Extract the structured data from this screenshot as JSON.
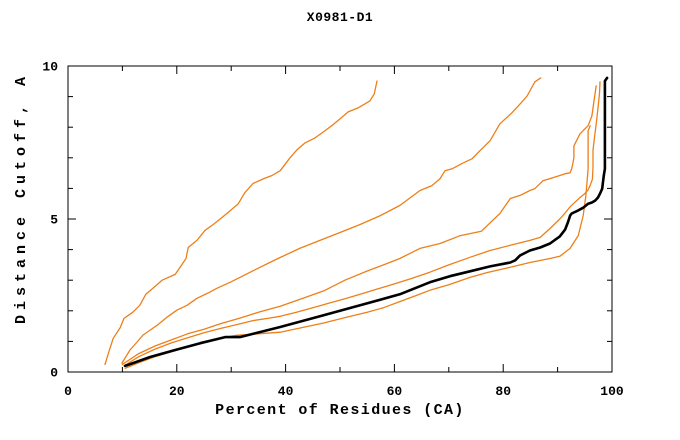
{
  "figure": {
    "title": "X0981-D1",
    "xlabel": "Percent of Residues (CA)",
    "ylabel": "Distance Cutoff, A"
  },
  "chart_data": {
    "type": "line",
    "title": "X0981-D1",
    "xlabel": "Percent of Residues (CA)",
    "ylabel": "Distance Cutoff, A",
    "xlim": [
      0,
      100
    ],
    "ylim": [
      0,
      10
    ],
    "xticks": {
      "major": [
        0,
        20,
        40,
        60,
        80,
        100
      ],
      "minor": [
        10,
        30,
        50,
        70,
        90
      ]
    },
    "yticks": {
      "major": [
        0,
        5,
        10
      ],
      "minor": [
        1,
        2,
        3,
        4,
        6,
        7,
        8,
        9
      ]
    },
    "grid": false,
    "legend": false,
    "frame": "box-with-inward-ticks",
    "colors": {
      "model_orange": "#ee7f18",
      "reference_black": "#000000"
    },
    "series": [
      {
        "name": "orange-line-1",
        "color": "#ee7f18",
        "width": 1.3,
        "points": [
          [
            6.8,
            0.25
          ],
          [
            7.4,
            0.6
          ],
          [
            8.3,
            1.1
          ],
          [
            9.6,
            1.45
          ],
          [
            10.3,
            1.75
          ],
          [
            11.9,
            1.95
          ],
          [
            13.2,
            2.18
          ],
          [
            14.3,
            2.54
          ],
          [
            15.6,
            2.74
          ],
          [
            17.3,
            3.0
          ],
          [
            19.7,
            3.19
          ],
          [
            20.6,
            3.42
          ],
          [
            21.7,
            3.71
          ],
          [
            22.1,
            4.07
          ],
          [
            23.7,
            4.3
          ],
          [
            25.2,
            4.63
          ],
          [
            26.7,
            4.82
          ],
          [
            28.3,
            5.05
          ],
          [
            29.4,
            5.21
          ],
          [
            31.3,
            5.5
          ],
          [
            32.5,
            5.86
          ],
          [
            34,
            6.16
          ],
          [
            36,
            6.32
          ],
          [
            37.5,
            6.42
          ],
          [
            39,
            6.58
          ],
          [
            40.8,
            7.0
          ],
          [
            42.1,
            7.26
          ],
          [
            43.6,
            7.49
          ],
          [
            45.4,
            7.65
          ],
          [
            47.2,
            7.88
          ],
          [
            48.7,
            8.08
          ],
          [
            50,
            8.27
          ],
          [
            51.5,
            8.5
          ],
          [
            53.3,
            8.63
          ],
          [
            55.5,
            8.86
          ],
          [
            56.3,
            9.09
          ],
          [
            56.8,
            9.51
          ]
        ]
      },
      {
        "name": "orange-line-2",
        "color": "#ee7f18",
        "width": 1.3,
        "points": [
          [
            9.9,
            0.29
          ],
          [
            11.4,
            0.72
          ],
          [
            12.7,
            0.98
          ],
          [
            13.8,
            1.21
          ],
          [
            15.1,
            1.37
          ],
          [
            16.4,
            1.53
          ],
          [
            18.2,
            1.79
          ],
          [
            20,
            2.02
          ],
          [
            21.9,
            2.18
          ],
          [
            23.7,
            2.41
          ],
          [
            25.6,
            2.57
          ],
          [
            27.4,
            2.74
          ],
          [
            29.8,
            2.93
          ],
          [
            31.6,
            3.09
          ],
          [
            33.5,
            3.26
          ],
          [
            35.3,
            3.42
          ],
          [
            37.1,
            3.58
          ],
          [
            38.6,
            3.71
          ],
          [
            42.6,
            4.04
          ],
          [
            46.3,
            4.3
          ],
          [
            50,
            4.56
          ],
          [
            53.7,
            4.82
          ],
          [
            57.4,
            5.11
          ],
          [
            61,
            5.44
          ],
          [
            64.7,
            5.93
          ],
          [
            66.9,
            6.09
          ],
          [
            68.4,
            6.32
          ],
          [
            69.3,
            6.58
          ],
          [
            70.6,
            6.64
          ],
          [
            72.4,
            6.81
          ],
          [
            74.3,
            6.97
          ],
          [
            75.7,
            7.23
          ],
          [
            77.6,
            7.56
          ],
          [
            79.4,
            8.11
          ],
          [
            81.6,
            8.47
          ],
          [
            83.1,
            8.76
          ],
          [
            84.4,
            9.02
          ],
          [
            85.8,
            9.48
          ],
          [
            86.9,
            9.61
          ]
        ]
      },
      {
        "name": "orange-line-3",
        "color": "#ee7f18",
        "width": 1.3,
        "points": [
          [
            10,
            0.25
          ],
          [
            13,
            0.6
          ],
          [
            16,
            0.85
          ],
          [
            19,
            1.05
          ],
          [
            22,
            1.25
          ],
          [
            25,
            1.4
          ],
          [
            28,
            1.58
          ],
          [
            31.6,
            1.76
          ],
          [
            35,
            1.95
          ],
          [
            39,
            2.15
          ],
          [
            43,
            2.4
          ],
          [
            47,
            2.65
          ],
          [
            50.9,
            3.0
          ],
          [
            55,
            3.3
          ],
          [
            58,
            3.5
          ],
          [
            61,
            3.71
          ],
          [
            64.7,
            4.04
          ],
          [
            68.4,
            4.2
          ],
          [
            72,
            4.45
          ],
          [
            76,
            4.6
          ],
          [
            79.4,
            5.18
          ],
          [
            81.3,
            5.67
          ],
          [
            83.1,
            5.77
          ],
          [
            84.9,
            5.93
          ],
          [
            85.8,
            5.99
          ],
          [
            87.3,
            6.25
          ],
          [
            88.6,
            6.32
          ],
          [
            90.4,
            6.42
          ],
          [
            91.4,
            6.48
          ],
          [
            92.3,
            6.51
          ],
          [
            92.6,
            6.64
          ],
          [
            92.8,
            6.81
          ],
          [
            93,
            7.0
          ],
          [
            93,
            7.39
          ],
          [
            94.1,
            7.78
          ],
          [
            95.6,
            8.05
          ],
          [
            96.3,
            8.37
          ],
          [
            96.7,
            8.86
          ],
          [
            97.1,
            9.35
          ]
        ]
      },
      {
        "name": "orange-line-4",
        "color": "#ee7f18",
        "width": 1.3,
        "points": [
          [
            10.3,
            0.2
          ],
          [
            13,
            0.5
          ],
          [
            16,
            0.75
          ],
          [
            19,
            0.95
          ],
          [
            22,
            1.12
          ],
          [
            25,
            1.28
          ],
          [
            28,
            1.42
          ],
          [
            31,
            1.55
          ],
          [
            34,
            1.68
          ],
          [
            37,
            1.76
          ],
          [
            39,
            1.82
          ],
          [
            42,
            1.95
          ],
          [
            45,
            2.1
          ],
          [
            48,
            2.25
          ],
          [
            51,
            2.4
          ],
          [
            54,
            2.56
          ],
          [
            57,
            2.72
          ],
          [
            60,
            2.88
          ],
          [
            63,
            3.05
          ],
          [
            66.5,
            3.26
          ],
          [
            70,
            3.5
          ],
          [
            73.9,
            3.75
          ],
          [
            77.6,
            3.97
          ],
          [
            81.3,
            4.14
          ],
          [
            84.9,
            4.3
          ],
          [
            86.8,
            4.4
          ],
          [
            88.6,
            4.69
          ],
          [
            90.4,
            5.0
          ],
          [
            91.4,
            5.2
          ],
          [
            92.3,
            5.4
          ],
          [
            93.2,
            5.55
          ],
          [
            94.1,
            5.7
          ],
          [
            95,
            5.83
          ],
          [
            95.6,
            5.95
          ],
          [
            96,
            6.1
          ],
          [
            96.4,
            6.3
          ],
          [
            96.5,
            6.7
          ],
          [
            96.5,
            7.25
          ],
          [
            96.8,
            7.7
          ],
          [
            97.1,
            8.1
          ],
          [
            97.4,
            8.6
          ],
          [
            97.7,
            9.1
          ],
          [
            97.8,
            9.48
          ]
        ]
      },
      {
        "name": "orange-line-5",
        "color": "#ee7f18",
        "width": 1.3,
        "points": [
          [
            10.5,
            0.12
          ],
          [
            13,
            0.3
          ],
          [
            16,
            0.5
          ],
          [
            19,
            0.66
          ],
          [
            22,
            0.82
          ],
          [
            25,
            0.96
          ],
          [
            28,
            1.1
          ],
          [
            31,
            1.2
          ],
          [
            35,
            1.25
          ],
          [
            39,
            1.3
          ],
          [
            43,
            1.45
          ],
          [
            47,
            1.6
          ],
          [
            51,
            1.78
          ],
          [
            55,
            1.95
          ],
          [
            58,
            2.1
          ],
          [
            61,
            2.3
          ],
          [
            64,
            2.5
          ],
          [
            66.5,
            2.67
          ],
          [
            70,
            2.85
          ],
          [
            73.9,
            3.09
          ],
          [
            77,
            3.25
          ],
          [
            81.3,
            3.42
          ],
          [
            84.9,
            3.58
          ],
          [
            88.6,
            3.71
          ],
          [
            90.4,
            3.78
          ],
          [
            92.3,
            4.04
          ],
          [
            93.8,
            4.46
          ],
          [
            94.7,
            5.11
          ],
          [
            95.2,
            5.77
          ],
          [
            95.6,
            6.64
          ],
          [
            95.6,
            7.88
          ],
          [
            96,
            8.05
          ]
        ]
      },
      {
        "name": "black-line",
        "color": "#000000",
        "width": 2.6,
        "points": [
          [
            10.5,
            0.2
          ],
          [
            15.1,
            0.49
          ],
          [
            19.7,
            0.72
          ],
          [
            24.3,
            0.94
          ],
          [
            28.9,
            1.14
          ],
          [
            31.6,
            1.14
          ],
          [
            39,
            1.47
          ],
          [
            46.3,
            1.82
          ],
          [
            53.7,
            2.18
          ],
          [
            61,
            2.54
          ],
          [
            66.5,
            2.93
          ],
          [
            70.2,
            3.13
          ],
          [
            73.9,
            3.29
          ],
          [
            77.6,
            3.45
          ],
          [
            81.3,
            3.58
          ],
          [
            82.2,
            3.65
          ],
          [
            83.1,
            3.81
          ],
          [
            84.9,
            3.97
          ],
          [
            86.8,
            4.07
          ],
          [
            88.6,
            4.2
          ],
          [
            90.4,
            4.43
          ],
          [
            91.4,
            4.66
          ],
          [
            91.9,
            4.89
          ],
          [
            92.3,
            5.11
          ],
          [
            92.6,
            5.18
          ],
          [
            93.8,
            5.28
          ],
          [
            94.7,
            5.37
          ],
          [
            95.6,
            5.5
          ],
          [
            96.3,
            5.54
          ],
          [
            96.9,
            5.6
          ],
          [
            97.4,
            5.7
          ],
          [
            97.8,
            5.83
          ],
          [
            98.2,
            5.99
          ],
          [
            98.3,
            6.16
          ],
          [
            98.5,
            6.42
          ],
          [
            98.7,
            6.64
          ],
          [
            98.7,
            9.51
          ],
          [
            99.1,
            9.61
          ]
        ]
      }
    ]
  }
}
